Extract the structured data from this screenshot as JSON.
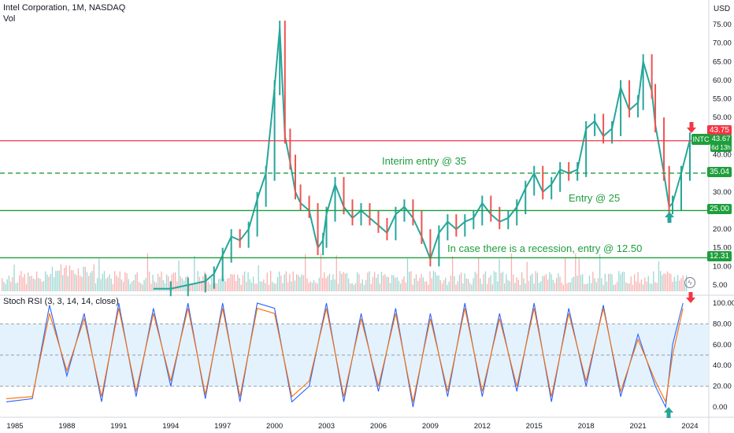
{
  "header": {
    "title": "Intel Corporation, 1M, NASDAQ",
    "volume_label": "Vol",
    "rsi_label": "Stoch RSI (3, 3, 14, 14, close)",
    "currency": "USD",
    "ticker": "INTC",
    "last_price": "43.67",
    "countdown": "6d 13h"
  },
  "colors": {
    "up": "#26a69a",
    "down": "#ef5350",
    "red_line": "#f23645",
    "green_line": "#1e9e3c",
    "rsi_k": "#2962ff",
    "rsi_d": "#ff6d00",
    "rsi_band": "#e3f2fd"
  },
  "price_tags": [
    {
      "label": "43.75",
      "color": "#f23645"
    },
    {
      "label": "35.04",
      "color": "#1e9e3c"
    },
    {
      "label": "25.00",
      "color": "#1e9e3c"
    },
    {
      "label": "12.31",
      "color": "#1e9e3c"
    }
  ],
  "annotations": {
    "interim": "Interim entry @ 35",
    "entry": "Entry @ 25",
    "recession": "In case there is a recession, entry @ 12.50"
  },
  "chart_data": [
    {
      "type": "line",
      "title": "Intel Corporation, 1M, NASDAQ",
      "price_axis_ticks": [
        5,
        10,
        15,
        20,
        25,
        30,
        35,
        40,
        45,
        50,
        55,
        60,
        65,
        70,
        75
      ],
      "price_axis_range": [
        3,
        77
      ],
      "time_axis_ticks": [
        "1985",
        "1988",
        "1991",
        "1994",
        "1997",
        "2000",
        "2003",
        "2006",
        "2009",
        "2012",
        "2015",
        "2018",
        "2021",
        "2024"
      ],
      "horizontal_levels": [
        {
          "value": 43.75,
          "style": "solid",
          "color": "red"
        },
        {
          "value": 35.04,
          "style": "dashed",
          "color": "green"
        },
        {
          "value": 25.0,
          "style": "solid",
          "color": "green"
        },
        {
          "value": 12.31,
          "style": "solid",
          "color": "green"
        }
      ],
      "x": [
        1993,
        1994,
        1995,
        1996,
        1996.5,
        1997,
        1997.5,
        1998,
        1998.5,
        1999,
        1999.5,
        2000,
        2000.3,
        2000.6,
        2000.9,
        2001.2,
        2001.5,
        2002,
        2002.5,
        2002.8,
        2003,
        2003.5,
        2004,
        2004.5,
        2005,
        2005.5,
        2006,
        2006.5,
        2007,
        2007.5,
        2008,
        2008.5,
        2009,
        2009.5,
        2010,
        2010.5,
        2011,
        2011.5,
        2012,
        2012.5,
        2013,
        2013.5,
        2014,
        2014.5,
        2015,
        2015.5,
        2016,
        2016.5,
        2017,
        2017.5,
        2018,
        2018.5,
        2019,
        2019.5,
        2020,
        2020.5,
        2021,
        2021.3,
        2021.8,
        2022,
        2022.5,
        2022.8,
        2023,
        2023.5,
        2024
      ],
      "y": [
        4,
        4,
        5,
        6,
        8,
        13,
        18,
        17,
        20,
        28,
        35,
        58,
        74,
        45,
        38,
        30,
        27,
        25,
        15,
        17,
        24,
        32,
        26,
        23,
        25,
        23,
        21,
        19,
        24,
        26,
        23,
        18,
        12,
        19,
        22,
        20,
        22,
        23,
        27,
        24,
        22,
        23,
        26,
        31,
        35,
        30,
        32,
        36,
        35,
        36,
        47,
        49,
        45,
        47,
        58,
        52,
        54,
        65,
        57,
        48,
        35,
        26,
        27,
        35,
        44
      ]
    },
    {
      "type": "line",
      "title": "Stoch RSI (3, 3, 14, 14, close)",
      "axis_ticks": [
        0,
        20,
        40,
        60,
        80,
        100
      ],
      "bands": [
        20,
        50,
        80
      ],
      "x": [
        1984.5,
        1986,
        1987,
        1988,
        1989,
        1990,
        1991,
        1992,
        1993,
        1994,
        1995,
        1996,
        1997,
        1998,
        1999,
        2000,
        2001,
        2002,
        2003,
        2004,
        2005,
        2006,
        2007,
        2008,
        2009,
        2010,
        2011,
        2012,
        2013,
        2014,
        2015,
        2016,
        2017,
        2018,
        2019,
        2020,
        2021,
        2022,
        2022.6,
        2023,
        2023.6
      ],
      "series": [
        {
          "values": [
            5,
            8,
            98,
            30,
            90,
            5,
            100,
            10,
            95,
            20,
            100,
            8,
            100,
            5,
            100,
            95,
            5,
            20,
            100,
            5,
            90,
            15,
            95,
            0,
            90,
            10,
            100,
            10,
            90,
            15,
            100,
            5,
            95,
            20,
            98,
            10,
            70,
            20,
            0,
            60,
            100
          ]
        },
        {
          "values": [
            8,
            10,
            90,
            35,
            85,
            10,
            95,
            15,
            90,
            25,
            95,
            12,
            95,
            10,
            95,
            90,
            10,
            25,
            95,
            10,
            85,
            20,
            90,
            5,
            85,
            15,
            95,
            15,
            85,
            20,
            95,
            10,
            90,
            25,
            95,
            15,
            65,
            25,
            5,
            50,
            95
          ]
        }
      ]
    }
  ]
}
